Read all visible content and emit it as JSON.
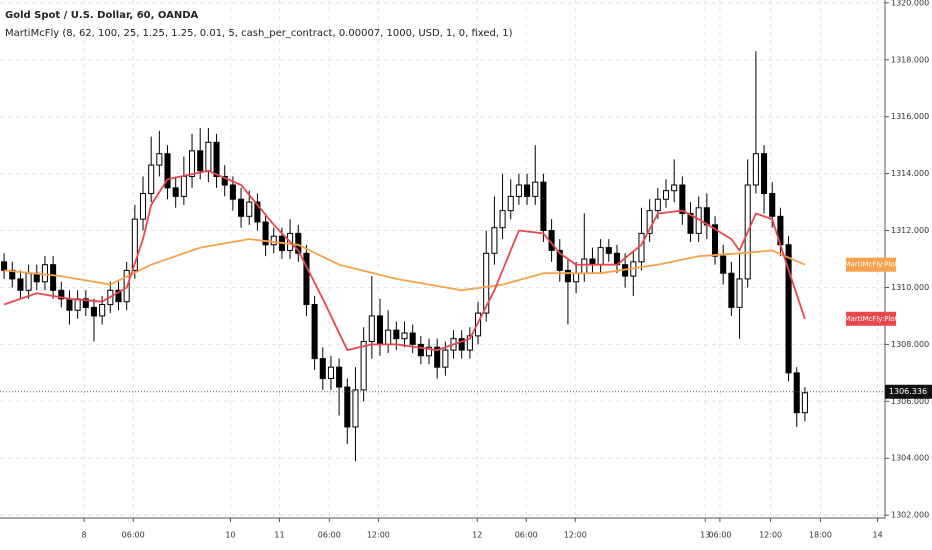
{
  "chart_data": {
    "type": "candlestick",
    "title": "Gold Spot / U.S. Dollar, 60, OANDA",
    "subtitle": "MartiMcFly (8, 62, 100, 25, 1.25, 1.25, 0.01, 5, cash_per_contract, 0.00007, 1000, USD, 1, 0, fixed, 1)",
    "up_color": "#ffffff",
    "down_color": "#000000",
    "open": [
      1310.9,
      1310.6,
      1310.3,
      1309.9,
      1310.5,
      1310.2,
      1310.8,
      1309.9,
      1309.6,
      1309.2,
      1309.6,
      1309.3,
      1309.0,
      1309.4,
      1309.9,
      1309.5,
      1310.6,
      1312.4,
      1313.3,
      1314.3,
      1314.7,
      1313.5,
      1313.2,
      1313.9,
      1314.8,
      1314.1,
      1315.1,
      1313.9,
      1313.6,
      1313.1,
      1312.5,
      1313.0,
      1312.3,
      1311.5,
      1311.8,
      1311.3,
      1311.9,
      1311.2,
      1309.4,
      1307.5,
      1306.8,
      1307.2,
      1306.5,
      1305.1,
      1306.4,
      1308.1,
      1309.0,
      1308.0,
      1308.5,
      1308.2,
      1308.4,
      1308.0,
      1307.6,
      1307.9,
      1307.2,
      1307.8,
      1308.2,
      1307.8,
      1308.3,
      1309.1,
      1311.2,
      1312.1,
      1312.7,
      1313.2,
      1313.6,
      1313.2,
      1313.7,
      1312.0,
      1311.3,
      1310.6,
      1310.2,
      1310.5,
      1311.0,
      1310.8,
      1311.4,
      1311.2,
      1310.8,
      1310.4,
      1310.9,
      1311.9,
      1312.7,
      1313.1,
      1313.4,
      1313.6,
      1312.6,
      1311.9,
      1312.8,
      1312.2,
      1311.1,
      1310.5,
      1309.3,
      1310.3,
      1313.6,
      1314.7,
      1313.3,
      1312.5,
      1311.5,
      1307.0,
      1305.6
    ],
    "high": [
      1311.2,
      1310.9,
      1310.6,
      1310.8,
      1310.8,
      1311.1,
      1311.1,
      1310.2,
      1309.9,
      1309.9,
      1309.9,
      1309.6,
      1309.7,
      1310.2,
      1310.2,
      1310.9,
      1312.9,
      1313.9,
      1315.3,
      1315.5,
      1315.0,
      1313.9,
      1314.6,
      1315.4,
      1315.6,
      1315.6,
      1315.4,
      1314.3,
      1313.9,
      1313.5,
      1313.4,
      1313.3,
      1312.6,
      1312.1,
      1312.1,
      1312.4,
      1312.2,
      1311.5,
      1309.7,
      1307.9,
      1307.6,
      1307.5,
      1306.8,
      1307.2,
      1308.6,
      1310.4,
      1309.6,
      1309.2,
      1308.8,
      1308.8,
      1308.7,
      1308.3,
      1308.2,
      1308.2,
      1308.1,
      1308.5,
      1308.5,
      1308.6,
      1309.5,
      1312.0,
      1313.2,
      1314.0,
      1313.8,
      1314.0,
      1314.0,
      1315.0,
      1314.0,
      1312.4,
      1311.7,
      1311.0,
      1310.9,
      1312.6,
      1311.4,
      1311.7,
      1311.7,
      1311.5,
      1311.2,
      1311.3,
      1312.8,
      1313.1,
      1313.5,
      1313.8,
      1314.5,
      1313.9,
      1313.0,
      1313.2,
      1313.3,
      1312.5,
      1311.5,
      1310.9,
      1311.2,
      1314.5,
      1318.3,
      1315.0,
      1313.7,
      1312.8,
      1311.8,
      1307.2,
      1306.5
    ],
    "low": [
      1310.3,
      1310.0,
      1309.6,
      1309.6,
      1309.9,
      1309.9,
      1309.6,
      1309.3,
      1308.7,
      1308.9,
      1309.0,
      1308.1,
      1308.7,
      1309.1,
      1309.2,
      1309.2,
      1310.3,
      1312.0,
      1313.0,
      1313.9,
      1313.1,
      1312.8,
      1312.9,
      1313.5,
      1313.8,
      1313.7,
      1313.5,
      1313.2,
      1312.7,
      1312.1,
      1312.2,
      1312.0,
      1311.1,
      1311.2,
      1311.0,
      1311.0,
      1310.9,
      1309.0,
      1307.1,
      1306.4,
      1306.4,
      1305.5,
      1304.5,
      1303.9,
      1306.0,
      1307.5,
      1307.6,
      1307.7,
      1307.8,
      1307.9,
      1307.7,
      1307.3,
      1307.3,
      1306.8,
      1306.9,
      1307.5,
      1307.5,
      1307.5,
      1308.0,
      1308.8,
      1310.8,
      1311.7,
      1312.4,
      1312.9,
      1312.9,
      1312.9,
      1311.6,
      1310.9,
      1310.2,
      1308.7,
      1309.8,
      1310.2,
      1310.5,
      1310.5,
      1310.9,
      1310.5,
      1310.0,
      1309.7,
      1310.6,
      1311.6,
      1312.4,
      1312.8,
      1313.0,
      1312.2,
      1311.6,
      1311.6,
      1311.7,
      1310.8,
      1310.1,
      1309.0,
      1308.2,
      1310.0,
      1313.3,
      1312.6,
      1312.1,
      1311.1,
      1306.7,
      1305.1,
      1305.3
    ],
    "close": [
      1310.6,
      1310.3,
      1309.9,
      1310.5,
      1310.2,
      1310.8,
      1309.9,
      1309.6,
      1309.2,
      1309.6,
      1309.3,
      1309.0,
      1309.4,
      1309.9,
      1309.5,
      1310.6,
      1312.4,
      1313.3,
      1314.3,
      1314.7,
      1313.5,
      1313.2,
      1313.9,
      1314.8,
      1314.1,
      1315.1,
      1313.9,
      1313.6,
      1313.1,
      1312.5,
      1313.0,
      1312.3,
      1311.5,
      1311.8,
      1311.3,
      1311.9,
      1311.2,
      1309.4,
      1307.5,
      1306.8,
      1307.2,
      1306.5,
      1305.1,
      1306.4,
      1308.1,
      1309.0,
      1308.0,
      1308.5,
      1308.2,
      1308.4,
      1308.0,
      1307.6,
      1307.9,
      1307.2,
      1307.8,
      1308.2,
      1307.8,
      1308.3,
      1309.1,
      1311.2,
      1312.1,
      1312.7,
      1313.2,
      1313.6,
      1313.2,
      1313.7,
      1312.0,
      1311.3,
      1310.6,
      1310.2,
      1310.5,
      1311.0,
      1310.8,
      1311.4,
      1311.2,
      1310.8,
      1310.4,
      1310.9,
      1311.9,
      1312.7,
      1313.1,
      1313.4,
      1313.6,
      1312.6,
      1311.9,
      1312.8,
      1312.2,
      1311.1,
      1310.5,
      1309.3,
      1310.3,
      1313.6,
      1314.7,
      1313.3,
      1312.5,
      1311.5,
      1307.0,
      1305.6,
      1306.3
    ],
    "series": [
      {
        "name": "MartiMcFly:Plot",
        "color": "#f7a24b",
        "x": [
          0,
          7,
          13,
          18,
          24,
          30,
          36,
          41,
          48,
          56,
          61,
          66,
          73,
          80,
          85,
          90,
          94,
          98
        ],
        "values": [
          1310.6,
          1310.4,
          1310.1,
          1310.8,
          1311.4,
          1311.7,
          1311.5,
          1310.8,
          1310.3,
          1309.9,
          1310.1,
          1310.5,
          1310.5,
          1310.8,
          1311.1,
          1311.2,
          1311.3,
          1310.8
        ]
      },
      {
        "name": "MartiMcFly:Plot",
        "color": "#e8474d",
        "x": [
          0,
          4,
          8,
          12,
          15,
          17,
          18,
          20,
          25,
          29,
          33,
          36,
          39,
          42,
          45,
          48,
          53,
          57,
          60,
          63,
          66,
          68,
          70,
          75,
          78,
          80,
          83,
          85,
          89,
          90,
          92,
          94,
          96,
          98
        ],
        "values": [
          1309.4,
          1309.8,
          1309.6,
          1309.5,
          1310.0,
          1311.7,
          1312.9,
          1313.8,
          1314.1,
          1313.6,
          1312.2,
          1311.3,
          1309.6,
          1307.8,
          1308.0,
          1308.0,
          1307.8,
          1308.2,
          1309.9,
          1312.0,
          1311.9,
          1311.2,
          1310.8,
          1310.8,
          1311.5,
          1312.6,
          1312.7,
          1312.4,
          1311.7,
          1311.3,
          1312.6,
          1312.4,
          1310.6,
          1308.9
        ]
      }
    ],
    "last_price": 1306.336,
    "xlim": [
      -0.5,
      107.8
    ],
    "xticks": [
      {
        "value": 9.8,
        "label": "8"
      },
      {
        "value": 15.8,
        "label": "06:00"
      },
      {
        "value": 27.7,
        "label": "10"
      },
      {
        "value": 33.7,
        "label": "11"
      },
      {
        "value": 39.8,
        "label": "06:00"
      },
      {
        "value": 45.8,
        "label": "12:00"
      },
      {
        "value": 57.9,
        "label": "12"
      },
      {
        "value": 63.9,
        "label": "06:00"
      },
      {
        "value": 69.9,
        "label": "12:00"
      },
      {
        "value": 85.8,
        "label": "13"
      },
      {
        "value": 87.6,
        "label": "06:00"
      },
      {
        "value": 93.8,
        "label": "12:00"
      },
      {
        "value": 99.9,
        "label": "18:00"
      },
      {
        "value": 106.9,
        "label": "14"
      }
    ],
    "ylim": [
      1301.9,
      1320.1
    ],
    "yticks": [
      {
        "value": 1302,
        "label": "1302.000"
      },
      {
        "value": 1304,
        "label": "1304.000"
      },
      {
        "value": 1306,
        "label": "1306.000"
      },
      {
        "value": 1308,
        "label": "1308.000"
      },
      {
        "value": 1310,
        "label": "1310.000"
      },
      {
        "value": 1312,
        "label": "1312.000"
      },
      {
        "value": 1314,
        "label": "1314.000"
      },
      {
        "value": 1316,
        "label": "1316.000"
      },
      {
        "value": 1318,
        "label": "1318.000"
      },
      {
        "value": 1320,
        "label": "1320.000"
      }
    ],
    "grid": true
  }
}
